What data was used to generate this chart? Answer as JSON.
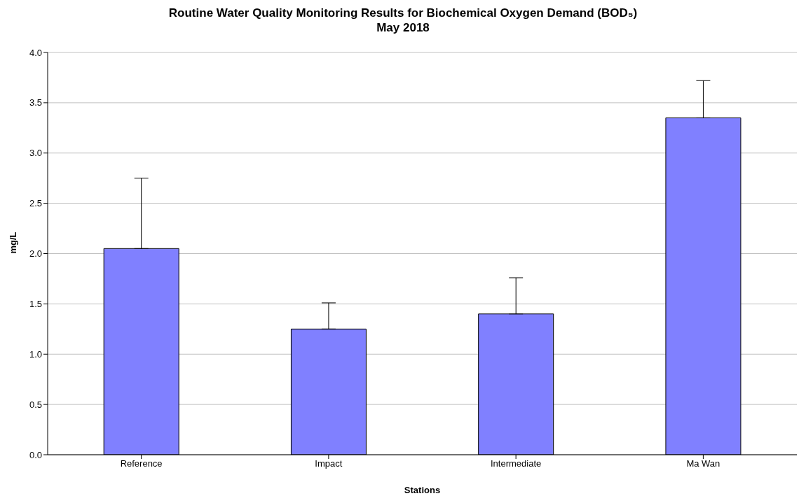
{
  "chart_data": {
    "type": "bar",
    "title": "Routine Water Quality Monitoring Results for Biochemical Oxygen Demand (BOD₅)",
    "subtitle": "May 2018",
    "xlabel": "Stations",
    "ylabel": "mg/L",
    "categories": [
      "Reference",
      "Impact",
      "Intermediate",
      "Ma Wan"
    ],
    "values": [
      2.05,
      1.25,
      1.4,
      3.35
    ],
    "errors": [
      [
        2.05,
        2.75
      ],
      [
        1.25,
        1.51
      ],
      [
        1.4,
        1.76
      ],
      [
        3.35,
        3.72
      ]
    ],
    "color": "#8080ff",
    "ylim": [
      0,
      4
    ],
    "yticks": [
      {
        "value": 0,
        "label": "0.0"
      },
      0.5,
      {
        "value": 1,
        "label": "1.0"
      },
      1.5,
      {
        "value": 2,
        "label": "2.0"
      },
      2.5,
      {
        "value": 3,
        "label": "3.0"
      },
      3.5,
      {
        "value": 4,
        "label": "4.0"
      }
    ],
    "grid": "y",
    "legend": false
  }
}
